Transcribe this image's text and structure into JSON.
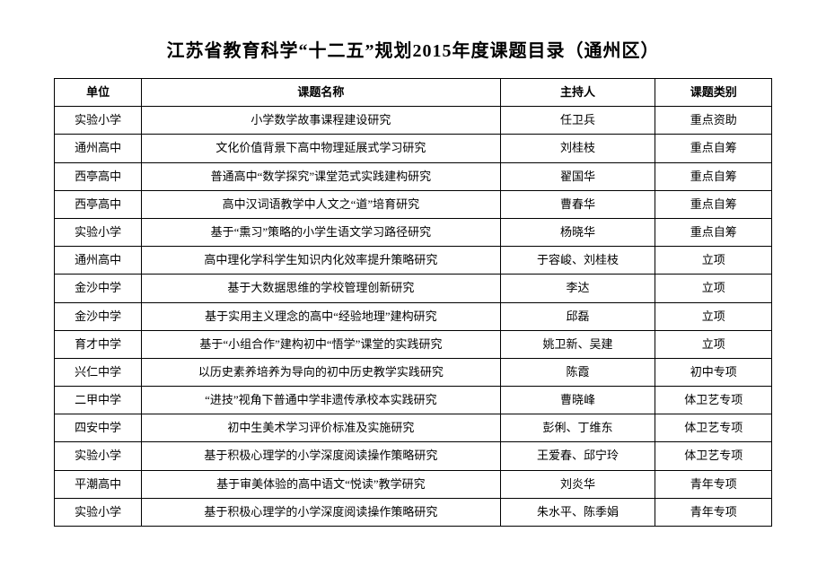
{
  "title": "江苏省教育科学“十二五”规划2015年度课题目录（通州区）",
  "headers": {
    "unit": "单位",
    "topic": "课题名称",
    "host": "主持人",
    "category": "课题类别"
  },
  "rows": [
    {
      "unit": "实验小学",
      "topic": "小学数学故事课程建设研究",
      "host": "任卫兵",
      "category": "重点资助"
    },
    {
      "unit": "通州高中",
      "topic": "文化价值背景下高中物理延展式学习研究",
      "host": "刘桂枝",
      "category": "重点自筹"
    },
    {
      "unit": "西亭高中",
      "topic": "普通高中“数学探究”课堂范式实践建构研究",
      "host": "翟国华",
      "category": "重点自筹"
    },
    {
      "unit": "西亭高中",
      "topic": "高中汉词语教学中人文之“道”培育研究",
      "host": "曹春华",
      "category": "重点自筹"
    },
    {
      "unit": "实验小学",
      "topic": "基于“熏习”策略的小学生语文学习路径研究",
      "host": "杨晓华",
      "category": "重点自筹"
    },
    {
      "unit": "通州高中",
      "topic": "高中理化学科学生知识内化效率提升策略研究",
      "host": "于容峻、刘桂枝",
      "category": "立项"
    },
    {
      "unit": "金沙中学",
      "topic": "基于大数据思维的学校管理创新研究",
      "host": "李达",
      "category": "立项"
    },
    {
      "unit": "金沙中学",
      "topic": "基于实用主义理念的高中“经验地理”建构研究",
      "host": "邱磊",
      "category": "立项"
    },
    {
      "unit": "育才中学",
      "topic": "基于“小组合作”建构初中“悟学”课堂的实践研究",
      "host": "姚卫新、吴建",
      "category": "立项"
    },
    {
      "unit": "兴仁中学",
      "topic": "以历史素养培养为导向的初中历史教学实践研究",
      "host": "陈霞",
      "category": "初中专项"
    },
    {
      "unit": "二甲中学",
      "topic": "“进技”视角下普通中学非遗传承校本实践研究",
      "host": "曹晓峰",
      "category": "体卫艺专项"
    },
    {
      "unit": "四安中学",
      "topic": "初中生美术学习评价标准及实施研究",
      "host": "彭俐、丁维东",
      "category": "体卫艺专项"
    },
    {
      "unit": "实验小学",
      "topic": "基于积极心理学的小学深度阅读操作策略研究",
      "host": "王爱春、邱宁玲",
      "category": "体卫艺专项"
    },
    {
      "unit": "平潮高中",
      "topic": "基于审美体验的高中语文“悦读”教学研究",
      "host": "刘炎华",
      "category": "青年专项"
    },
    {
      "unit": "实验小学",
      "topic": "基于积极心理学的小学深度阅读操作策略研究",
      "host": "朱水平、陈季娟",
      "category": "青年专项"
    }
  ]
}
